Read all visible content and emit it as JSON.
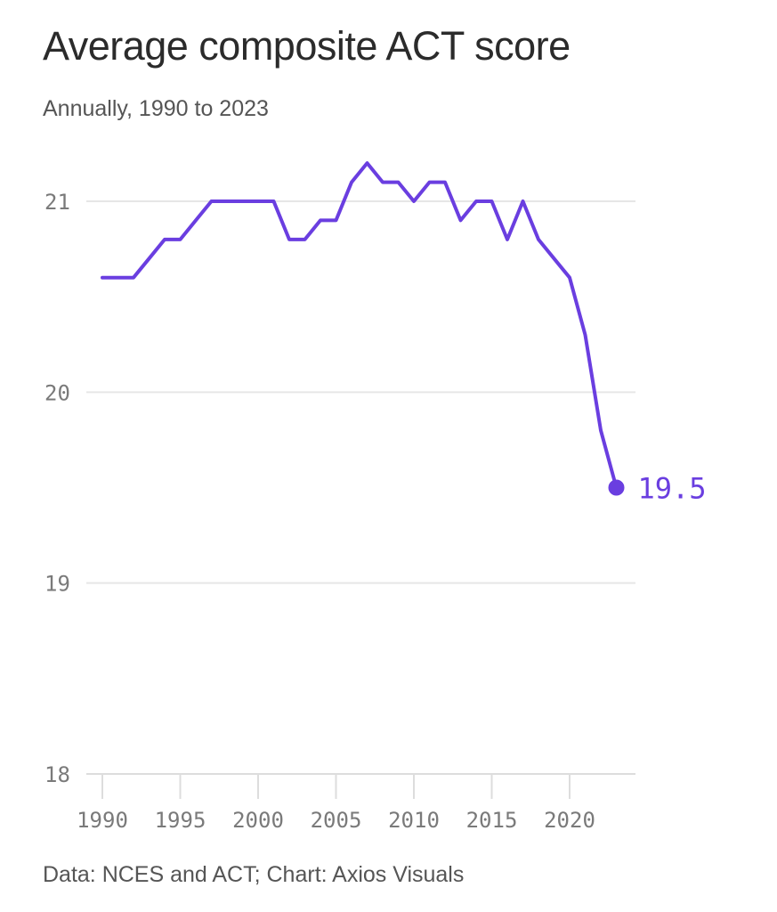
{
  "chart_data": {
    "type": "line",
    "title": "Average composite ACT score",
    "subtitle": "Annually, 1990 to 2023",
    "source": "Data: NCES and ACT; Chart: Axios Visuals",
    "xlabel": "",
    "ylabel": "",
    "x": [
      1990,
      1991,
      1992,
      1993,
      1994,
      1995,
      1996,
      1997,
      1998,
      1999,
      2000,
      2001,
      2002,
      2003,
      2004,
      2005,
      2006,
      2007,
      2008,
      2009,
      2010,
      2011,
      2012,
      2013,
      2014,
      2015,
      2016,
      2017,
      2018,
      2019,
      2020,
      2021,
      2022,
      2023
    ],
    "series": [
      {
        "values": [
          20.6,
          20.6,
          20.6,
          20.7,
          20.8,
          20.8,
          20.9,
          21.0,
          21.0,
          21.0,
          21.0,
          21.0,
          20.8,
          20.8,
          20.9,
          20.9,
          21.1,
          21.2,
          21.1,
          21.1,
          21.0,
          21.1,
          21.1,
          20.9,
          21.0,
          21.0,
          20.8,
          21.0,
          20.8,
          20.7,
          20.6,
          20.3,
          19.8,
          19.5
        ],
        "color": "#6a3ee0"
      }
    ],
    "xlim": [
      1990,
      2024
    ],
    "ylim": [
      18,
      21.2
    ],
    "yticks": [
      "18",
      "19",
      "20",
      "21"
    ],
    "xticks": [
      "1990",
      "1995",
      "2000",
      "2005",
      "2010",
      "2015",
      "2020"
    ],
    "end_label": "19.5",
    "grid": true,
    "gridColor": "#e6e6e6",
    "axisColor": "#dddddd"
  }
}
